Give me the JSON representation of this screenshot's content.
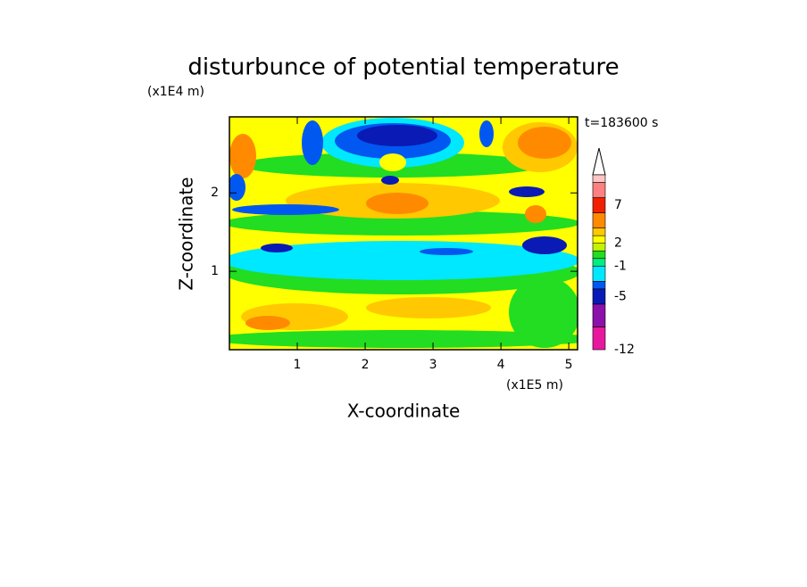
{
  "chart_data": {
    "type": "contour",
    "title": "disturbunce of potential temperature",
    "x_label": "X-coordinate",
    "y_label": "Z-coordinate",
    "x_unit": "(x1E5 m)",
    "y_unit": "(x1E4 m)",
    "annotation": "t=183600 s",
    "xlim": [
      0,
      5.13
    ],
    "xticks": [
      1,
      2,
      3,
      4,
      5
    ],
    "ylim": [
      0,
      2.97
    ],
    "yticks": [
      1,
      2
    ],
    "colorbar": {
      "bounds": [
        -12,
        -9,
        -6,
        -4,
        -3,
        -1,
        0,
        1,
        2,
        3,
        4,
        6,
        8,
        10,
        11
      ],
      "colors": [
        "#e8189e",
        "#8c10aa",
        "#0a1ab4",
        "#0058f0",
        "#00e8ff",
        "#00ee80",
        "#22dd22",
        "#c4f200",
        "#ffff00",
        "#ffc800",
        "#ff8a00",
        "#f02000",
        "#ff8080",
        "#ffc4c4"
      ],
      "ticks": [
        -12,
        -5,
        -1,
        2,
        7
      ]
    }
  }
}
